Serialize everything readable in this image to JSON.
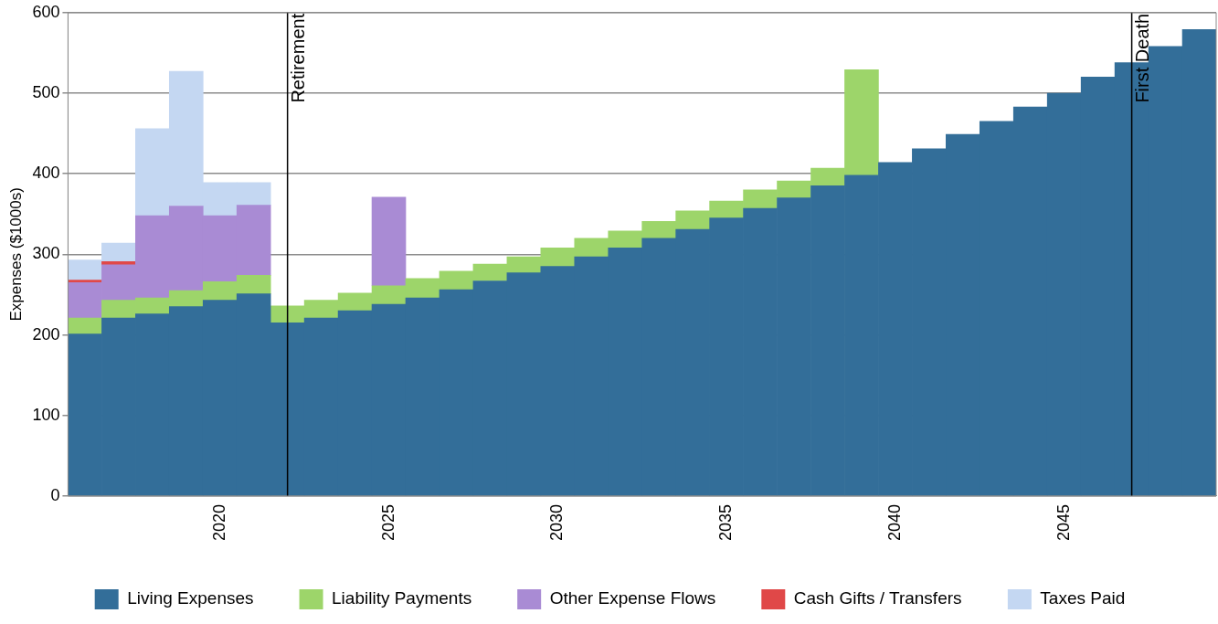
{
  "chart_data": {
    "type": "bar",
    "stacked": true,
    "ylabel": "Expenses ($1000s)",
    "x": [
      2016,
      2017,
      2018,
      2019,
      2020,
      2021,
      2022,
      2023,
      2024,
      2025,
      2026,
      2027,
      2028,
      2029,
      2030,
      2031,
      2032,
      2033,
      2034,
      2035,
      2036,
      2037,
      2038,
      2039,
      2040,
      2041,
      2042,
      2043,
      2044,
      2045,
      2046,
      2047,
      2048,
      2049
    ],
    "series": [
      {
        "name": "Living Expenses",
        "color": "#336e99",
        "values": [
          201,
          221,
          226,
          235,
          243,
          251,
          215,
          221,
          230,
          238,
          246,
          256,
          267,
          277,
          285,
          297,
          308,
          320,
          331,
          345,
          357,
          370,
          385,
          398,
          414,
          431,
          449,
          465,
          483,
          500,
          520,
          538,
          558,
          579
        ]
      },
      {
        "name": "Liability Payments",
        "color": "#9dd56a",
        "values": [
          20,
          22,
          20,
          20,
          23,
          23,
          21,
          22,
          22,
          23,
          24,
          23,
          21,
          20,
          23,
          23,
          21,
          21,
          23,
          21,
          23,
          21,
          22,
          131,
          null,
          null,
          null,
          null,
          null,
          null,
          null,
          null,
          null,
          null
        ]
      },
      {
        "name": "Other Expense Flows",
        "color": "#a98bd4",
        "values": [
          44,
          44,
          102,
          105,
          82,
          87,
          null,
          null,
          null,
          110,
          null,
          null,
          null,
          null,
          null,
          null,
          null,
          null,
          null,
          null,
          null,
          null,
          null,
          null,
          null,
          null,
          null,
          null,
          null,
          null,
          null,
          null,
          null,
          null
        ]
      },
      {
        "name": "Cash Gifts / Transfers",
        "color": "#e04848",
        "values": [
          3,
          4,
          null,
          null,
          null,
          null,
          null,
          null,
          null,
          null,
          null,
          null,
          null,
          null,
          null,
          null,
          null,
          null,
          null,
          null,
          null,
          null,
          null,
          null,
          null,
          null,
          null,
          null,
          null,
          null,
          null,
          null,
          null,
          null
        ]
      },
      {
        "name": "Taxes Paid",
        "color": "#c4d7f2",
        "values": [
          25,
          23,
          108,
          167,
          41,
          28,
          null,
          null,
          null,
          null,
          null,
          null,
          null,
          null,
          null,
          null,
          null,
          null,
          null,
          null,
          null,
          null,
          null,
          null,
          null,
          null,
          null,
          null,
          null,
          null,
          null,
          null,
          null,
          null
        ]
      }
    ],
    "xlim": [
      2015.5,
      2049.5
    ],
    "xticks": [
      2020,
      2025,
      2030,
      2035,
      2040,
      2045
    ],
    "ylim": [
      0,
      600
    ],
    "yticks": [
      0,
      100,
      200,
      300,
      400,
      500,
      600
    ],
    "ref_lines": [
      {
        "axis": "x",
        "value": 2022,
        "label": "Retirement",
        "color": "#000000"
      },
      {
        "axis": "x",
        "value": 2047,
        "label": "First Death",
        "color": "#000000"
      }
    ],
    "grid": "y",
    "legend": "bottom"
  }
}
